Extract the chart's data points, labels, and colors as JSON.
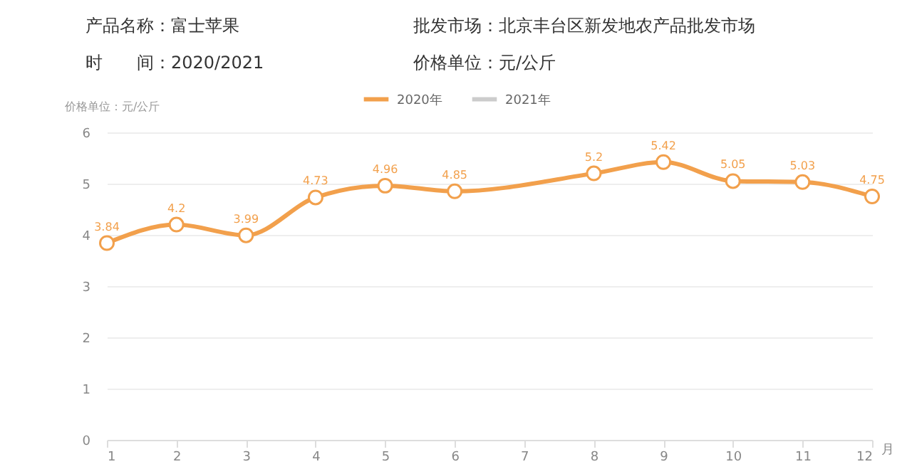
{
  "chart_data": {
    "type": "line",
    "annotations": [
      "产品名称：富士苹果",
      "批发市场：北京丰台区新发地农产品批发市场",
      "时　　间：2020/2021",
      "价格单位：元/公斤"
    ],
    "ylabel": "价格单位：元/公斤",
    "xlabel": "月",
    "x": [
      1,
      2,
      3,
      4,
      5,
      6,
      8,
      9,
      10,
      11,
      12
    ],
    "series": [
      {
        "name": "2020年",
        "color": "#f2a04c",
        "values": [
          3.84,
          4.2,
          3.99,
          4.73,
          4.96,
          4.85,
          5.2,
          5.42,
          5.05,
          5.03,
          4.75
        ]
      },
      {
        "name": "2021年",
        "color": "#cccccc",
        "values": [
          null,
          null,
          null,
          null,
          null,
          null,
          null,
          null,
          null,
          null,
          null
        ]
      }
    ],
    "xlim": [
      1,
      12
    ],
    "xticks": [
      1,
      2,
      3,
      4,
      5,
      6,
      7,
      8,
      9,
      10,
      11,
      12
    ],
    "ylim": [
      0,
      6
    ],
    "yticks": [
      0,
      1,
      2,
      3,
      4,
      5,
      6
    ],
    "grid": "y",
    "legend": "top",
    "marker": "circle",
    "line_style": "solid",
    "data_labels": true
  }
}
